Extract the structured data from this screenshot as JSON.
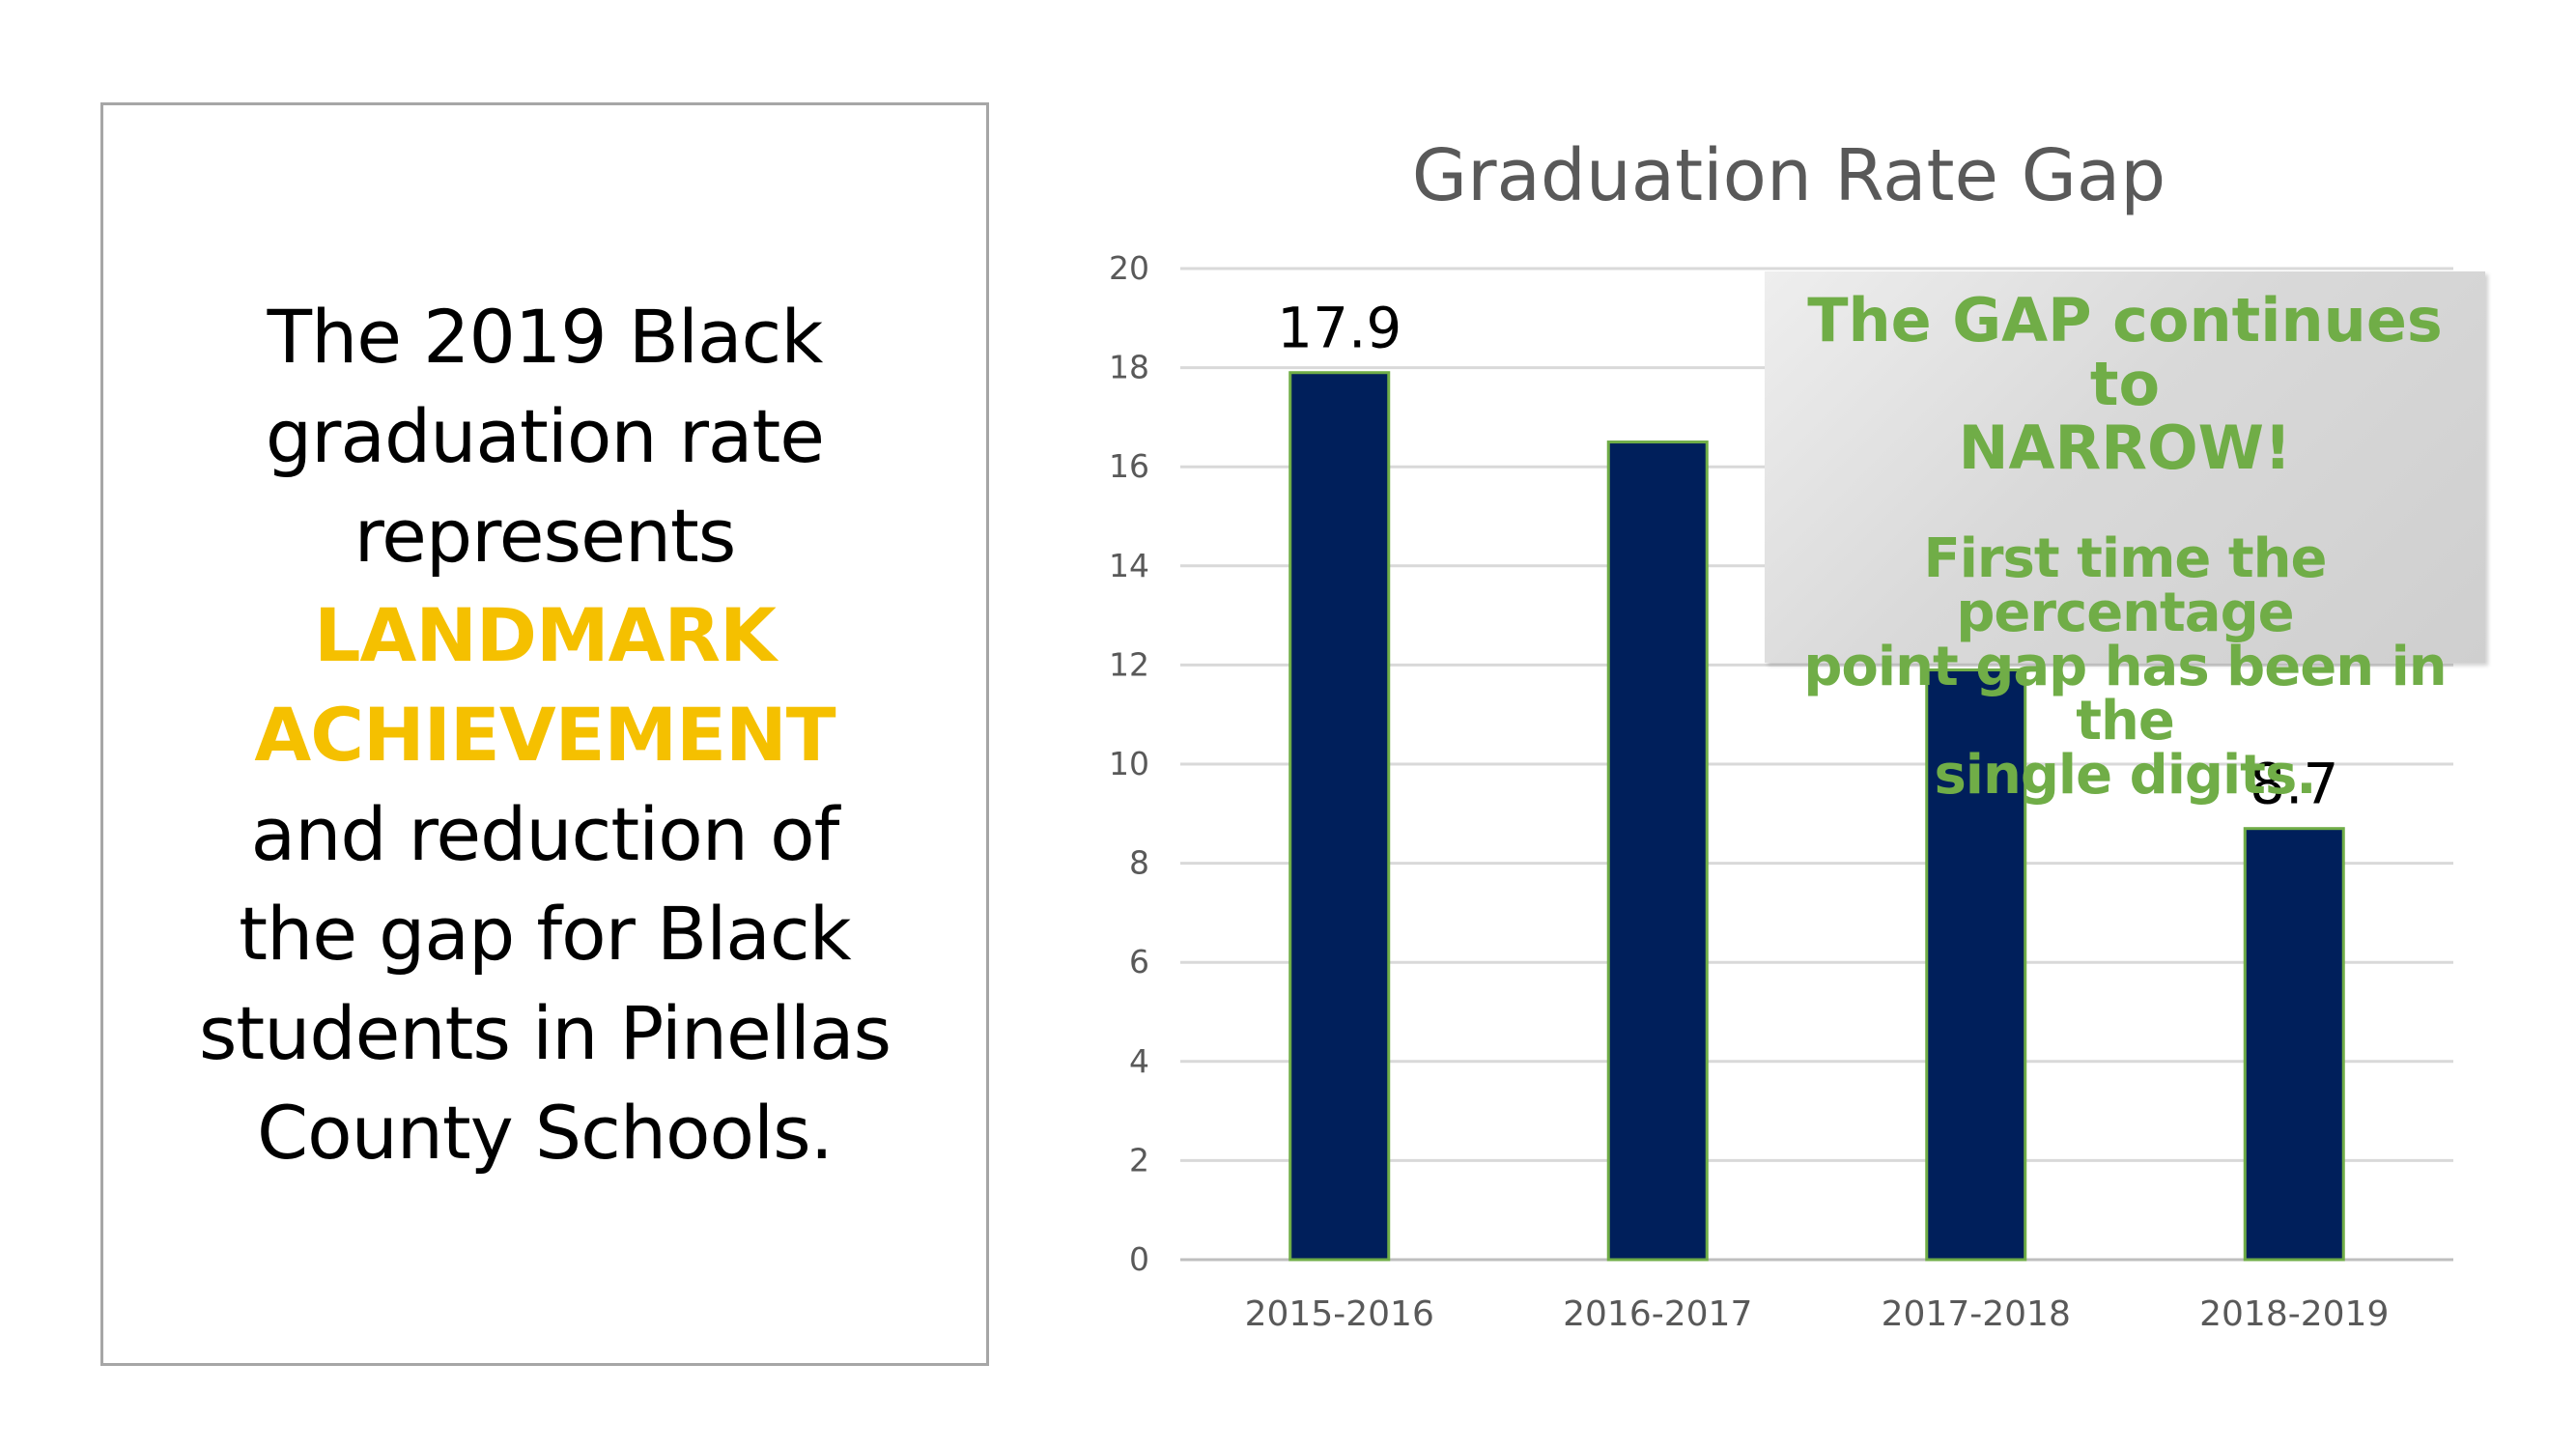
{
  "message": {
    "line1": "The 2019 Black",
    "line2": "graduation rate",
    "line3": "represents",
    "highlight1": "LANDMARK",
    "highlight2": "ACHIEVEMENT",
    "line4": "and reduction of",
    "line5": "the gap for Black",
    "line6": "students in Pinellas",
    "line7": "County Schools.",
    "highlight_color": "#f5c000"
  },
  "callout": {
    "heading_line1": "The GAP continues to",
    "heading_line2": "NARROW!",
    "body_line1": "First time the percentage",
    "body_line2": "point gap has been in the",
    "body_line3": "single digits.",
    "text_color": "#70ad47"
  },
  "chart_data": {
    "type": "bar",
    "title": "Graduation Rate Gap",
    "categories": [
      "2015-2016",
      "2016-2017",
      "2017-2018",
      "2018-2019"
    ],
    "values": [
      17.9,
      16.5,
      11.9,
      8.7
    ],
    "data_labels": [
      "17.9",
      "",
      "",
      "8.7"
    ],
    "ylim": [
      0,
      20
    ],
    "yticks": [
      0,
      2,
      4,
      6,
      8,
      10,
      12,
      14,
      16,
      18,
      20
    ],
    "grid": true,
    "bar_color": "#001f5b",
    "bar_outline_color": "#70ad47",
    "xlabel": "",
    "ylabel": ""
  }
}
